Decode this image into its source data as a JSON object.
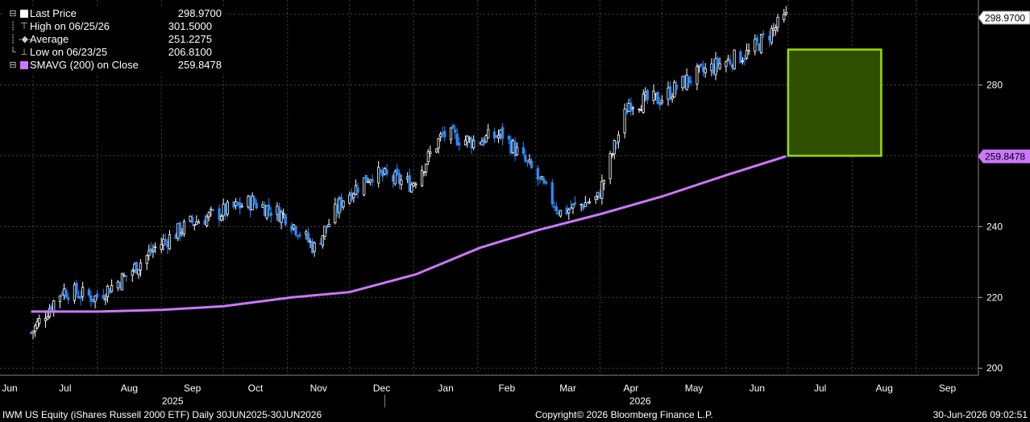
{
  "legend": {
    "last_price": {
      "label": "Last Price",
      "value": "298.9700"
    },
    "high": {
      "label": "High on 06/25/26",
      "value": "301.5000"
    },
    "average": {
      "label": "Average",
      "value": "251.2275"
    },
    "low": {
      "label": "Low on 06/23/25",
      "value": "206.8100"
    },
    "smavg": {
      "label": "SMAVG (200)  on Close",
      "value": "259.8478"
    }
  },
  "footer": {
    "left": "IWM US Equity (iShares Russell 2000 ETF) Daily 30JUN2025-30JUN2026",
    "center": "Copyright© 2026 Bloomberg Finance L.P.",
    "right": "30-Jun-2026 09:02:51"
  },
  "colors": {
    "background": "#000000",
    "up_candle": "#ffffff",
    "down_candle": "#2a8cff",
    "sma": "#cc77ff",
    "target_box_fill": "#2f4f00",
    "target_box_stroke": "#99dd00"
  },
  "chart_data": {
    "type": "line",
    "title": "",
    "xlabel": "",
    "ylabel": "",
    "ylim": [
      198,
      304
    ],
    "y_ticks": [
      200,
      220,
      240,
      280
    ],
    "x_tick_labels": [
      "Jun",
      "Jul",
      "Aug",
      "Sep",
      "Oct",
      "Nov",
      "Dec",
      "Jan",
      "Feb",
      "Mar",
      "Apr",
      "May",
      "Jun",
      "Jul",
      "Aug",
      "Sep"
    ],
    "year_labels": [
      "2025",
      "2026"
    ],
    "grid": true,
    "last_price_tag": "298.9700",
    "sma_tag": "259.8478",
    "series": [
      {
        "name": "Last Price",
        "style": "candlestick",
        "x": [
          "2025-06-30",
          "2025-07-15",
          "2025-07-31",
          "2025-08-15",
          "2025-08-29",
          "2025-09-15",
          "2025-09-30",
          "2025-10-15",
          "2025-10-31",
          "2025-11-14",
          "2025-11-28",
          "2025-12-12",
          "2025-12-31",
          "2026-01-15",
          "2026-01-30",
          "2026-02-13",
          "2026-02-27",
          "2026-03-13",
          "2026-03-31",
          "2026-04-15",
          "2026-04-30",
          "2026-05-15",
          "2026-05-29",
          "2026-06-12",
          "2026-06-30"
        ],
        "values": [
          210,
          222,
          220,
          226,
          234,
          241,
          244,
          247,
          243,
          234,
          248,
          255,
          252,
          266,
          264,
          266,
          256,
          244,
          248,
          275,
          276,
          282,
          286,
          289,
          299
        ]
      },
      {
        "name": "SMAVG (200)  on Close",
        "style": "line",
        "x": [
          "2025-06-30",
          "2025-08-01",
          "2025-09-01",
          "2025-10-01",
          "2025-11-03",
          "2025-12-01",
          "2026-01-02",
          "2026-02-02",
          "2026-03-02",
          "2026-04-01",
          "2026-05-01",
          "2026-06-01",
          "2026-06-30"
        ],
        "values": [
          216,
          216,
          216.5,
          217.5,
          220,
          221.5,
          226.5,
          234,
          239,
          243.5,
          248.5,
          254.5,
          259.85
        ]
      }
    ],
    "annotations": [
      {
        "type": "rectangle",
        "x_start": "2026-07-01",
        "x_end": "2026-08-15",
        "y_start": 260,
        "y_end": 290
      }
    ]
  }
}
